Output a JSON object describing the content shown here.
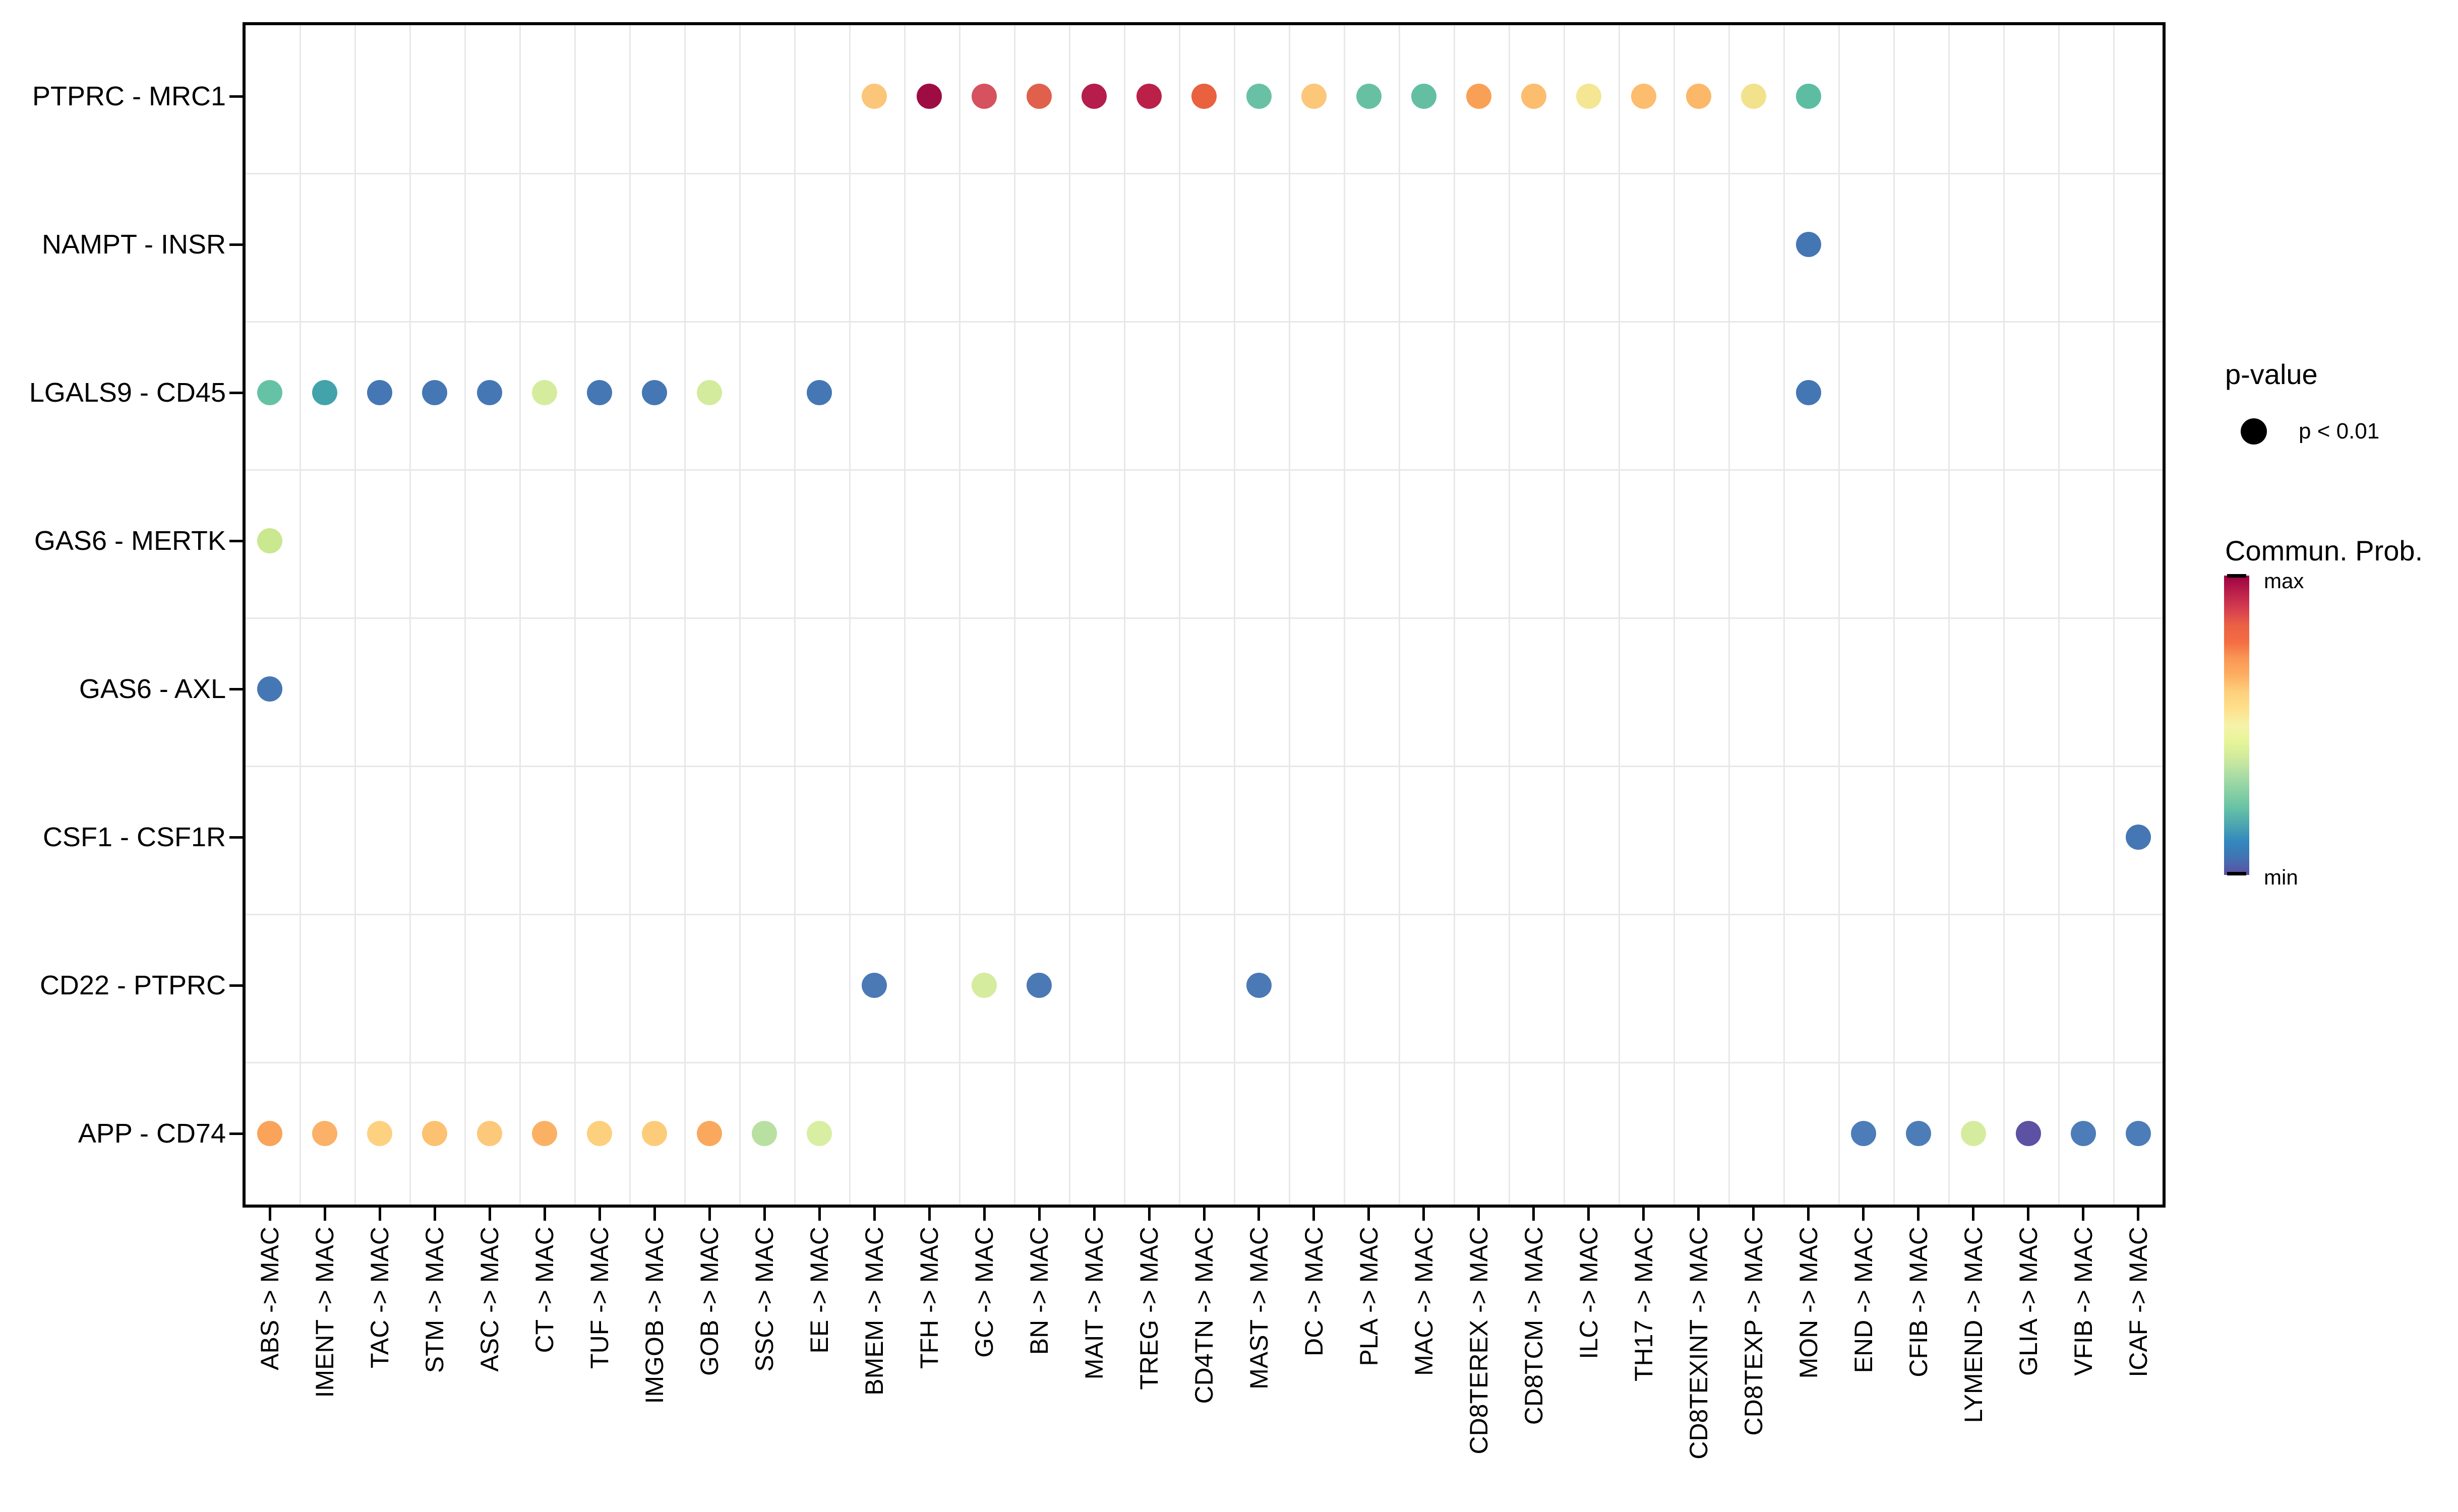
{
  "chart_data": {
    "type": "scatter",
    "subtype": "dot-plot",
    "title": "",
    "xlabel": "",
    "ylabel": "",
    "grid": true,
    "legend_position": "right",
    "size_encoding": "p-value (all dots p < 0.01, single size)",
    "color_encoding": "Commun. Prob. (Spectral, min=blue/purple, max=dark red)",
    "x_categories": [
      "ABS -> MAC",
      "IMENT -> MAC",
      "TAC -> MAC",
      "STM -> MAC",
      "ASC -> MAC",
      "CT -> MAC",
      "TUF -> MAC",
      "IMGOB -> MAC",
      "GOB -> MAC",
      "SSC -> MAC",
      "EE -> MAC",
      "BMEM -> MAC",
      "TFH -> MAC",
      "GC -> MAC",
      "BN -> MAC",
      "MAIT -> MAC",
      "TREG -> MAC",
      "CD4TN -> MAC",
      "MAST -> MAC",
      "DC -> MAC",
      "PLA -> MAC",
      "MAC -> MAC",
      "CD8TEREX -> MAC",
      "CD8TCM -> MAC",
      "ILC -> MAC",
      "TH17 -> MAC",
      "CD8TEXINT -> MAC",
      "CD8TEXP -> MAC",
      "MON -> MAC",
      "END -> MAC",
      "CFIB -> MAC",
      "LYMEND -> MAC",
      "GLIA -> MAC",
      "VFIB -> MAC",
      "ICAF -> MAC"
    ],
    "y_categories": [
      "PTPRC - MRC1",
      "NAMPT - INSR",
      "LGALS9 - CD45",
      "GAS6 - MERTK",
      "GAS6 - AXL",
      "CSF1 - CSF1R",
      "CD22 - PTPRC",
      "APP - CD74"
    ],
    "points": [
      {
        "y": "PTPRC - MRC1",
        "x": "BMEM -> MAC",
        "color": "#fbc679"
      },
      {
        "y": "PTPRC - MRC1",
        "x": "TFH -> MAC",
        "color": "#9e0c44"
      },
      {
        "y": "PTPRC - MRC1",
        "x": "GC -> MAC",
        "color": "#d5525e"
      },
      {
        "y": "PTPRC - MRC1",
        "x": "BN -> MAC",
        "color": "#e0604c"
      },
      {
        "y": "PTPRC - MRC1",
        "x": "MAIT -> MAC",
        "color": "#b41d4c"
      },
      {
        "y": "PTPRC - MRC1",
        "x": "TREG -> MAC",
        "color": "#bb2049"
      },
      {
        "y": "PTPRC - MRC1",
        "x": "CD4TN -> MAC",
        "color": "#e9613f"
      },
      {
        "y": "PTPRC - MRC1",
        "x": "MAST -> MAC",
        "color": "#68c1a4"
      },
      {
        "y": "PTPRC - MRC1",
        "x": "DC -> MAC",
        "color": "#fcc778"
      },
      {
        "y": "PTPRC - MRC1",
        "x": "PLA -> MAC",
        "color": "#68c0a3"
      },
      {
        "y": "PTPRC - MRC1",
        "x": "MAC -> MAC",
        "color": "#64bfa2"
      },
      {
        "y": "PTPRC - MRC1",
        "x": "CD8TEREX -> MAC",
        "color": "#f9a057"
      },
      {
        "y": "PTPRC - MRC1",
        "x": "CD8TCM -> MAC",
        "color": "#fcbd6e"
      },
      {
        "y": "PTPRC - MRC1",
        "x": "ILC -> MAC",
        "color": "#f4e692"
      },
      {
        "y": "PTPRC - MRC1",
        "x": "TH17 -> MAC",
        "color": "#fcbd6e"
      },
      {
        "y": "PTPRC - MRC1",
        "x": "CD8TEXINT -> MAC",
        "color": "#fbb868"
      },
      {
        "y": "PTPRC - MRC1",
        "x": "CD8TEXP -> MAC",
        "color": "#f1e28b"
      },
      {
        "y": "PTPRC - MRC1",
        "x": "MON -> MAC",
        "color": "#5dbda3"
      },
      {
        "y": "NAMPT - INSR",
        "x": "MON -> MAC",
        "color": "#4576b4"
      },
      {
        "y": "LGALS9 - CD45",
        "x": "ABS -> MAC",
        "color": "#66c2a5"
      },
      {
        "y": "LGALS9 - CD45",
        "x": "IMENT -> MAC",
        "color": "#42a3ab"
      },
      {
        "y": "LGALS9 - CD45",
        "x": "TAC -> MAC",
        "color": "#4477b3"
      },
      {
        "y": "LGALS9 - CD45",
        "x": "STM -> MAC",
        "color": "#4577b4"
      },
      {
        "y": "LGALS9 - CD45",
        "x": "ASC -> MAC",
        "color": "#4577b4"
      },
      {
        "y": "LGALS9 - CD45",
        "x": "CT -> MAC",
        "color": "#d5ec9e"
      },
      {
        "y": "LGALS9 - CD45",
        "x": "TUF -> MAC",
        "color": "#4577b4"
      },
      {
        "y": "LGALS9 - CD45",
        "x": "IMGOB -> MAC",
        "color": "#4577b4"
      },
      {
        "y": "LGALS9 - CD45",
        "x": "GOB -> MAC",
        "color": "#d3eb9c"
      },
      {
        "y": "LGALS9 - CD45",
        "x": "EE -> MAC",
        "color": "#4577b4"
      },
      {
        "y": "LGALS9 - CD45",
        "x": "MON -> MAC",
        "color": "#4576b4"
      },
      {
        "y": "GAS6 - MERTK",
        "x": "ABS -> MAC",
        "color": "#c9e88f"
      },
      {
        "y": "GAS6 - AXL",
        "x": "ABS -> MAC",
        "color": "#4577b4"
      },
      {
        "y": "CSF1 - CSF1R",
        "x": "ICAF -> MAC",
        "color": "#4577b4"
      },
      {
        "y": "CD22 - PTPRC",
        "x": "BMEM -> MAC",
        "color": "#4b79b5"
      },
      {
        "y": "CD22 - PTPRC",
        "x": "GC -> MAC",
        "color": "#d5ec9e"
      },
      {
        "y": "CD22 - PTPRC",
        "x": "BN -> MAC",
        "color": "#4b79b5"
      },
      {
        "y": "CD22 - PTPRC",
        "x": "MAST -> MAC",
        "color": "#4b79b5"
      },
      {
        "y": "APP - CD74",
        "x": "ABS -> MAC",
        "color": "#f9a45a"
      },
      {
        "y": "APP - CD74",
        "x": "IMENT -> MAC",
        "color": "#fbb167"
      },
      {
        "y": "APP - CD74",
        "x": "TAC -> MAC",
        "color": "#fdd180"
      },
      {
        "y": "APP - CD74",
        "x": "STM -> MAC",
        "color": "#fcc171"
      },
      {
        "y": "APP - CD74",
        "x": "ASC -> MAC",
        "color": "#fcc97a"
      },
      {
        "y": "APP - CD74",
        "x": "CT -> MAC",
        "color": "#fbb164"
      },
      {
        "y": "APP - CD74",
        "x": "TUF -> MAC",
        "color": "#fdd07e"
      },
      {
        "y": "APP - CD74",
        "x": "IMGOB -> MAC",
        "color": "#fdcc7b"
      },
      {
        "y": "APP - CD74",
        "x": "GOB -> MAC",
        "color": "#f9a85e"
      },
      {
        "y": "APP - CD74",
        "x": "SSC -> MAC",
        "color": "#b8e0a1"
      },
      {
        "y": "APP - CD74",
        "x": "EE -> MAC",
        "color": "#d8efa3"
      },
      {
        "y": "APP - CD74",
        "x": "END -> MAC",
        "color": "#4d7db8"
      },
      {
        "y": "APP - CD74",
        "x": "CFIB -> MAC",
        "color": "#4d7db8"
      },
      {
        "y": "APP - CD74",
        "x": "LYMEND -> MAC",
        "color": "#d5ec9e"
      },
      {
        "y": "APP - CD74",
        "x": "GLIA -> MAC",
        "color": "#5c51a3"
      },
      {
        "y": "APP - CD74",
        "x": "VFIB -> MAC",
        "color": "#4d7db8"
      },
      {
        "y": "APP - CD74",
        "x": "ICAF -> MAC",
        "color": "#4d7db8"
      }
    ]
  },
  "legend": {
    "pvalue_title": "p-value",
    "pvalue_entry": "p < 0.01",
    "colorbar_title": "Commun. Prob.",
    "max_label": "max",
    "min_label": "min",
    "gradient": [
      "#9e0142",
      "#ba2049",
      "#d53e4f",
      "#ea6145",
      "#f46d43",
      "#fa9856",
      "#fdae61",
      "#fecf7d",
      "#fee08b",
      "#f5f2a9",
      "#e6f598",
      "#cdea9d",
      "#abdda4",
      "#88d0a4",
      "#66c2a5",
      "#4ca5b1",
      "#3288bd",
      "#4272b2",
      "#5e4fa2"
    ]
  }
}
